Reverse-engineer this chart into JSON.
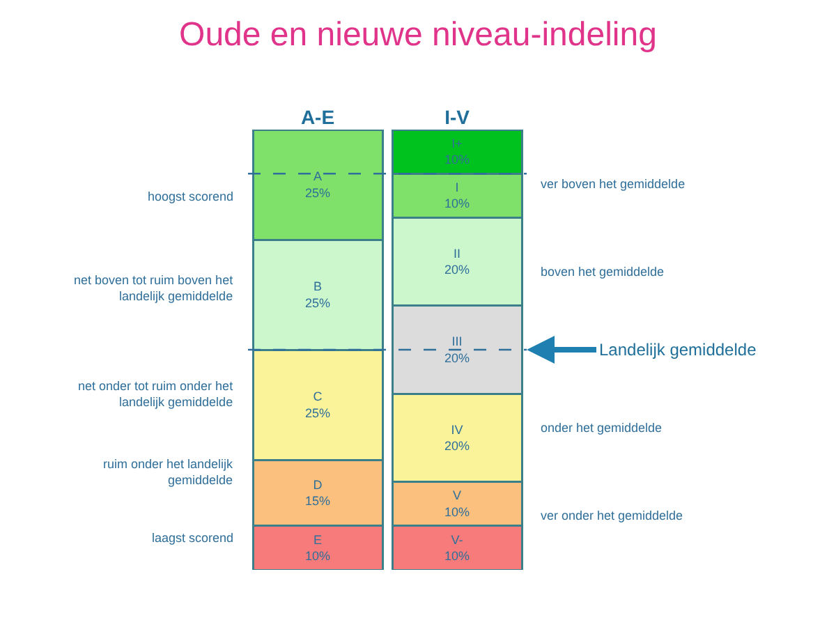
{
  "chart_data": {
    "type": "bar",
    "stacked": true,
    "title": "Oude en nieuwe niveau-indeling",
    "categories": [
      "A-E",
      "I-V"
    ],
    "series": [
      {
        "colors": [
          "#f77b7b",
          "#f77b7b"
        ],
        "values": [
          10,
          10
        ],
        "value_labels": [
          "E\n10%",
          "V-\n10%"
        ]
      },
      {
        "colors": [
          "#fbbf7e",
          "#fbbf7e"
        ],
        "values": [
          15,
          10
        ],
        "value_labels": [
          "D\n15%",
          "V\n10%"
        ]
      },
      {
        "colors": [
          "#fbf39a",
          "#fbf39a"
        ],
        "values": [
          25,
          20
        ],
        "value_labels": [
          "C\n25%",
          "IV\n20%"
        ]
      },
      {
        "colors": [
          "#ccf7cc",
          "#dcdcdc"
        ],
        "values": [
          25,
          20
        ],
        "value_labels": [
          "B\n25%",
          "III\n20%"
        ]
      },
      {
        "colors": [
          "#7fe06a",
          "#ccf7cc"
        ],
        "values": [
          25,
          20
        ],
        "value_labels": [
          "A\n25%",
          "II\n20%"
        ]
      },
      {
        "colors": [
          null,
          "#7fe06a"
        ],
        "values": [
          null,
          10
        ],
        "value_labels": [
          null,
          "I\n10%"
        ]
      },
      {
        "colors": [
          null,
          "#00c21f"
        ],
        "values": [
          null,
          10
        ],
        "value_labels": [
          null,
          "I+\n10%"
        ]
      }
    ],
    "ylim": [
      0,
      100
    ],
    "tick_labels": "x",
    "ref_lines": [
      {
        "axis": "y",
        "value": 90,
        "color": "#2f6f9a",
        "line_style": "dashed"
      },
      {
        "axis": "y",
        "value": 50,
        "label": "Landelijk gemiddelde",
        "color": "#2f6f9a",
        "line_style": "dashed"
      }
    ],
    "annotations": [
      "hoogst scorend",
      "net boven tot ruim boven het\nlandelijk gemiddelde",
      "net onder tot ruim onder het\nlandelijk gemiddelde",
      "ruim onder het landelijk\ngemiddelde",
      "laagst scorend",
      "ver boven het gemiddelde",
      "boven het gemiddelde",
      "onder het gemiddelde",
      "ver onder het gemiddelde"
    ],
    "legend": false
  }
}
